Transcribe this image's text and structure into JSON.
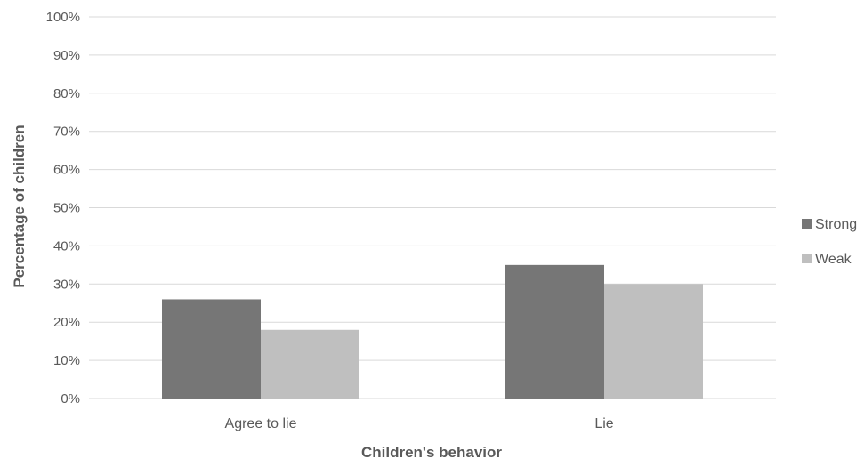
{
  "chart_data": {
    "type": "bar",
    "categories": [
      "Agree to lie",
      "Lie"
    ],
    "series": [
      {
        "name": "Strong",
        "values": [
          26,
          35
        ],
        "color": "#767676"
      },
      {
        "name": "Weak",
        "values": [
          18,
          30
        ],
        "color": "#bfbfbf"
      }
    ],
    "yticks": [
      "0%",
      "10%",
      "20%",
      "30%",
      "40%",
      "50%",
      "60%",
      "70%",
      "80%",
      "90%",
      "100%"
    ],
    "ylim": [
      0,
      100
    ],
    "xlabel": "Children's behavior",
    "ylabel": "Percentage of children",
    "grid": true,
    "gridline_color": "#d9d9d9",
    "legend_position": "right"
  }
}
